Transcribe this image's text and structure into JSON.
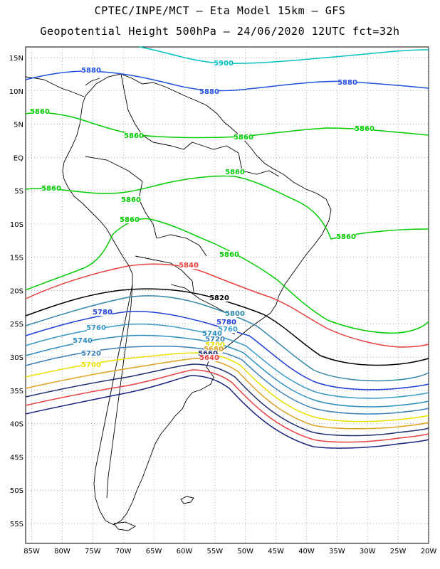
{
  "title_line1": "CPTEC/INPE/MCT –  Eta Model 15km – GFS",
  "title_line2": "Geopotential Height 500hPa – 24/06/2020 12UTC fct=32h",
  "lat_labels": [
    "15N",
    "10N",
    "5N",
    "EQ",
    "5S",
    "10S",
    "15S",
    "20S",
    "25S",
    "30S",
    "35S",
    "40S",
    "45S",
    "50S",
    "55S"
  ],
  "lon_labels": [
    "85W",
    "80W",
    "75W",
    "70W",
    "65W",
    "60W",
    "55W",
    "50W",
    "45W",
    "40W",
    "35W",
    "30W",
    "25W",
    "20W"
  ],
  "colors": {
    "5900": "#00c0c0",
    "5880": "#1e4fe0",
    "5860": "#00cc00",
    "5840": "#e8403c",
    "5820": "#000000",
    "5800": "#2f86a8",
    "5780": "#1e3fd8",
    "5760": "#3a9ac8",
    "5740": "#2c8ec0",
    "5720": "#3a7fb8",
    "5700": "#e8e000",
    "5680": "#e0a020",
    "5660": "#203070",
    "5640": "#e84040",
    "5620": "#1a237e",
    "coast": "#000000",
    "grid": "#777777"
  },
  "contour_labels": [
    {
      "text": "5900",
      "key": "5900"
    },
    {
      "text": "5880",
      "key": "5880"
    },
    {
      "text": "5880",
      "key": "5880"
    },
    {
      "text": "5880",
      "key": "5880"
    },
    {
      "text": "5860",
      "key": "5860"
    },
    {
      "text": "5860",
      "key": "5860"
    },
    {
      "text": "5860",
      "key": "5860"
    },
    {
      "text": "5860",
      "key": "5860"
    },
    {
      "text": "5860",
      "key": "5860"
    },
    {
      "text": "5860",
      "key": "5860"
    },
    {
      "text": "5860",
      "key": "5860"
    },
    {
      "text": "5860",
      "key": "5860"
    },
    {
      "text": "5860",
      "key": "5860"
    },
    {
      "text": "5860",
      "key": "5860"
    },
    {
      "text": "5840",
      "key": "5840"
    },
    {
      "text": "5820",
      "key": "5820"
    },
    {
      "text": "5800",
      "key": "5800"
    },
    {
      "text": "5780",
      "key": "5780"
    },
    {
      "text": "5780",
      "key": "5780"
    },
    {
      "text": "5760",
      "key": "5760"
    },
    {
      "text": "5760",
      "key": "5760"
    },
    {
      "text": "5740",
      "key": "5740"
    },
    {
      "text": "5740",
      "key": "5740"
    },
    {
      "text": "5720",
      "key": "5720"
    },
    {
      "text": "5720",
      "key": "5720"
    },
    {
      "text": "5700",
      "key": "5700"
    },
    {
      "text": "5700",
      "key": "5700"
    },
    {
      "text": "5680",
      "key": "5680"
    },
    {
      "text": "5660",
      "key": "5660"
    },
    {
      "text": "5640",
      "key": "5640"
    }
  ]
}
